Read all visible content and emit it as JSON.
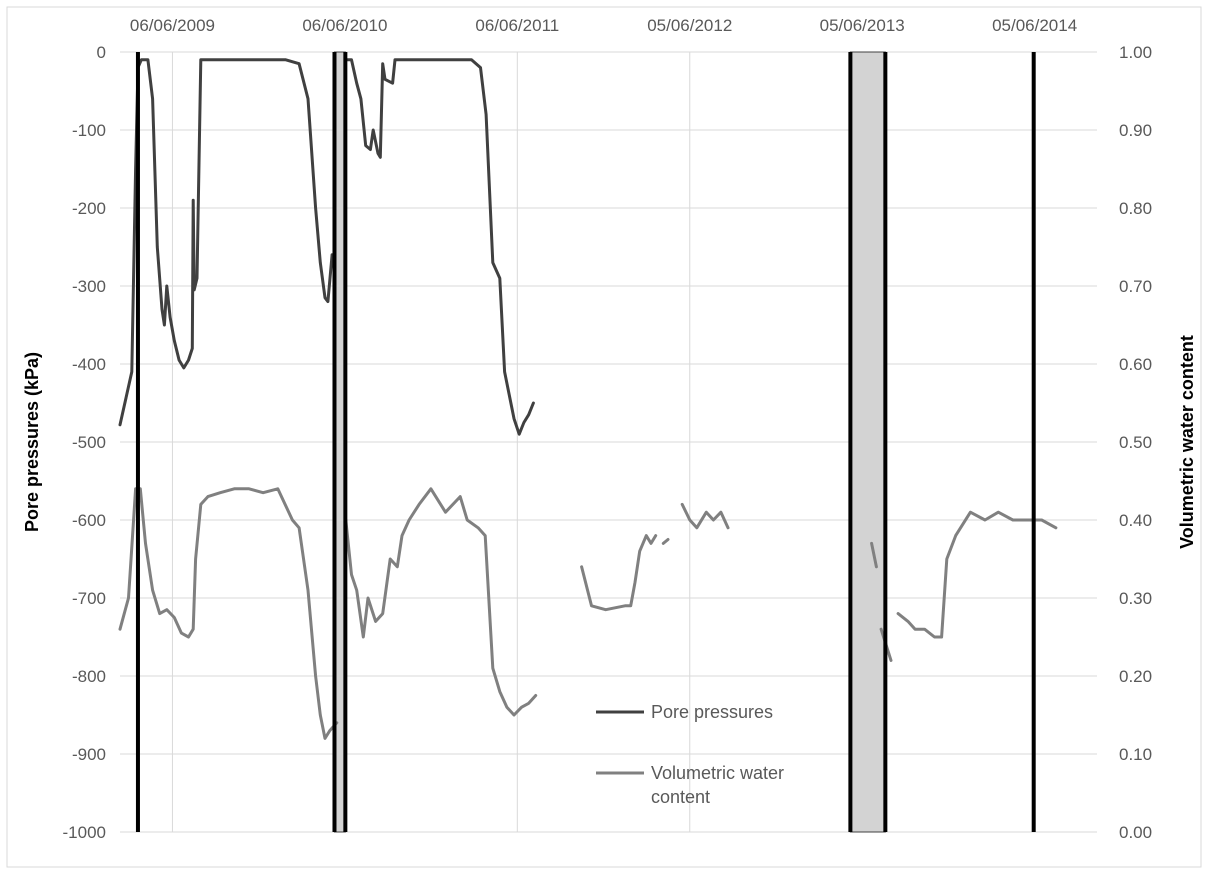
{
  "chart_data": {
    "type": "line",
    "title": "",
    "x_axis": {
      "position": "top",
      "tick_labels": [
        "06/06/2009",
        "06/06/2010",
        "06/06/2011",
        "05/06/2012",
        "05/06/2013",
        "05/06/2014"
      ],
      "range": [
        "2009-02-15",
        "2014-10-15"
      ]
    },
    "y_left": {
      "label": "Pore pressures (kPa)",
      "range": [
        -1000,
        0
      ],
      "ticks": [
        0,
        -100,
        -200,
        -300,
        -400,
        -500,
        -600,
        -700,
        -800,
        -900,
        -1000
      ]
    },
    "y_right": {
      "label": "Volumetric water content",
      "range": [
        0,
        1
      ],
      "ticks": [
        "1.00",
        "0.90",
        "0.80",
        "0.70",
        "0.60",
        "0.50",
        "0.40",
        "0.30",
        "0.20",
        "0.10",
        "0.00"
      ]
    },
    "grid": "horizontal and vertical",
    "legend_position": "bottom-center",
    "series": [
      {
        "name": "Pore pressures",
        "axis": "left",
        "color": "#404040",
        "segments": [
          [
            [
              "2009-02-15",
              -478
            ],
            [
              "2009-03-01",
              -440
            ],
            [
              "2009-03-12",
              -410
            ],
            [
              "2009-03-20",
              -150
            ],
            [
              "2009-03-25",
              -20
            ],
            [
              "2009-04-01",
              -10
            ],
            [
              "2009-04-15",
              -10
            ],
            [
              "2009-04-25",
              -60
            ],
            [
              "2009-05-05",
              -250
            ],
            [
              "2009-05-15",
              -330
            ],
            [
              "2009-05-20",
              -350
            ],
            [
              "2009-05-25",
              -300
            ],
            [
              "2009-06-01",
              -340
            ],
            [
              "2009-06-10",
              -370
            ],
            [
              "2009-06-20",
              -395
            ],
            [
              "2009-06-30",
              -405
            ],
            [
              "2009-07-10",
              -395
            ],
            [
              "2009-07-18",
              -380
            ],
            [
              "2009-07-20",
              -190
            ],
            [
              "2009-07-22",
              -305
            ],
            [
              "2009-07-28",
              -290
            ],
            [
              "2009-08-05",
              -10
            ],
            [
              "2009-08-20",
              -10
            ],
            [
              "2009-10-01",
              -10
            ],
            [
              "2009-12-01",
              -10
            ],
            [
              "2010-02-01",
              -10
            ],
            [
              "2010-03-01",
              -15
            ],
            [
              "2010-03-20",
              -60
            ],
            [
              "2010-04-05",
              -200
            ],
            [
              "2010-04-15",
              -270
            ],
            [
              "2010-04-25",
              -315
            ],
            [
              "2010-05-01",
              -320
            ],
            [
              "2010-05-10",
              -260
            ]
          ],
          [
            [
              "2010-06-08",
              -10
            ],
            [
              "2010-06-20",
              -10
            ],
            [
              "2010-07-01",
              -40
            ],
            [
              "2010-07-10",
              -60
            ],
            [
              "2010-07-20",
              -120
            ],
            [
              "2010-07-30",
              -125
            ],
            [
              "2010-08-05",
              -100
            ],
            [
              "2010-08-15",
              -130
            ],
            [
              "2010-08-20",
              -135
            ],
            [
              "2010-08-25",
              -15
            ],
            [
              "2010-08-30",
              -35
            ],
            [
              "2010-09-15",
              -40
            ],
            [
              "2010-09-20",
              -10
            ],
            [
              "2010-11-01",
              -10
            ],
            [
              "2011-01-01",
              -10
            ],
            [
              "2011-03-01",
              -10
            ],
            [
              "2011-03-20",
              -20
            ],
            [
              "2011-04-01",
              -80
            ],
            [
              "2011-04-15",
              -270
            ],
            [
              "2011-04-30",
              -290
            ],
            [
              "2011-05-10",
              -410
            ],
            [
              "2011-05-20",
              -440
            ],
            [
              "2011-05-30",
              -470
            ],
            [
              "2011-06-10",
              -490
            ],
            [
              "2011-06-20",
              -475
            ],
            [
              "2011-06-30",
              -465
            ],
            [
              "2011-07-10",
              -450
            ]
          ]
        ]
      },
      {
        "name": "Volumetric water content",
        "axis": "right",
        "color": "#808080",
        "segments": [
          [
            [
              "2009-02-15",
              0.26
            ],
            [
              "2009-03-05",
              0.3
            ],
            [
              "2009-03-20",
              0.44
            ],
            [
              "2009-03-30",
              0.44
            ],
            [
              "2009-04-10",
              0.37
            ],
            [
              "2009-04-25",
              0.31
            ],
            [
              "2009-05-10",
              0.28
            ],
            [
              "2009-05-25",
              0.285
            ],
            [
              "2009-06-10",
              0.275
            ],
            [
              "2009-06-25",
              0.255
            ],
            [
              "2009-07-10",
              0.25
            ],
            [
              "2009-07-20",
              0.26
            ],
            [
              "2009-07-25",
              0.35
            ],
            [
              "2009-08-05",
              0.42
            ],
            [
              "2009-08-20",
              0.43
            ],
            [
              "2009-09-15",
              0.435
            ],
            [
              "2009-10-15",
              0.44
            ],
            [
              "2009-11-15",
              0.44
            ],
            [
              "2009-12-15",
              0.435
            ],
            [
              "2010-01-15",
              0.44
            ],
            [
              "2010-02-15",
              0.4
            ],
            [
              "2010-03-01",
              0.39
            ],
            [
              "2010-03-20",
              0.31
            ],
            [
              "2010-04-05",
              0.2
            ],
            [
              "2010-04-15",
              0.15
            ],
            [
              "2010-04-25",
              0.12
            ],
            [
              "2010-05-05",
              0.13
            ],
            [
              "2010-05-20",
              0.14
            ]
          ],
          [
            [
              "2010-06-08",
              0.4
            ],
            [
              "2010-06-20",
              0.33
            ],
            [
              "2010-07-01",
              0.31
            ],
            [
              "2010-07-15",
              0.25
            ],
            [
              "2010-07-25",
              0.3
            ],
            [
              "2010-08-10",
              0.27
            ],
            [
              "2010-08-25",
              0.28
            ],
            [
              "2010-09-10",
              0.35
            ],
            [
              "2010-09-25",
              0.34
            ],
            [
              "2010-10-05",
              0.38
            ],
            [
              "2010-10-20",
              0.4
            ],
            [
              "2010-11-10",
              0.42
            ],
            [
              "2010-12-05",
              0.44
            ],
            [
              "2011-01-05",
              0.41
            ],
            [
              "2011-02-05",
              0.43
            ],
            [
              "2011-02-20",
              0.4
            ],
            [
              "2011-03-15",
              0.39
            ],
            [
              "2011-03-30",
              0.38
            ],
            [
              "2011-04-15",
              0.21
            ],
            [
              "2011-04-30",
              0.18
            ],
            [
              "2011-05-15",
              0.16
            ],
            [
              "2011-05-30",
              0.15
            ],
            [
              "2011-06-15",
              0.16
            ],
            [
              "2011-06-30",
              0.165
            ],
            [
              "2011-07-15",
              0.175
            ]
          ],
          [
            [
              "2011-10-20",
              0.34
            ],
            [
              "2011-11-10",
              0.29
            ],
            [
              "2011-12-10",
              0.285
            ],
            [
              "2012-01-20",
              0.29
            ],
            [
              "2012-02-01",
              0.29
            ],
            [
              "2012-02-10",
              0.32
            ],
            [
              "2012-02-20",
              0.36
            ],
            [
              "2012-03-05",
              0.38
            ],
            [
              "2012-03-15",
              0.37
            ],
            [
              "2012-03-25",
              0.38
            ]
          ],
          [
            [
              "2012-04-10",
              0.37
            ],
            [
              "2012-04-20",
              0.375
            ]
          ],
          [
            [
              "2012-05-20",
              0.42
            ],
            [
              "2012-06-05",
              0.4
            ],
            [
              "2012-06-20",
              0.39
            ],
            [
              "2012-07-10",
              0.41
            ],
            [
              "2012-07-25",
              0.4
            ],
            [
              "2012-08-10",
              0.41
            ],
            [
              "2012-08-25",
              0.39
            ]
          ],
          [
            [
              "2013-06-25",
              0.37
            ],
            [
              "2013-07-05",
              0.34
            ]
          ],
          [
            [
              "2013-07-15",
              0.26
            ],
            [
              "2013-08-05",
              0.22
            ]
          ],
          [
            [
              "2013-08-20",
              0.28
            ],
            [
              "2013-09-10",
              0.27
            ],
            [
              "2013-09-25",
              0.26
            ],
            [
              "2013-10-15",
              0.26
            ],
            [
              "2013-11-05",
              0.25
            ],
            [
              "2013-11-20",
              0.25
            ],
            [
              "2013-12-01",
              0.35
            ],
            [
              "2013-12-20",
              0.38
            ],
            [
              "2014-01-20",
              0.41
            ],
            [
              "2014-02-20",
              0.4
            ],
            [
              "2014-03-20",
              0.41
            ],
            [
              "2014-04-20",
              0.4
            ],
            [
              "2014-05-20",
              0.4
            ],
            [
              "2014-06-20",
              0.4
            ],
            [
              "2014-07-20",
              0.39
            ]
          ]
        ]
      }
    ],
    "annotations": {
      "vertical_lines": [
        "2009-03-25",
        "2010-05-15",
        "2010-06-07",
        "2013-05-11",
        "2013-07-24",
        "2014-06-03"
      ],
      "shaded_periods": [
        [
          "2010-05-15",
          "2010-06-07"
        ],
        [
          "2013-05-11",
          "2013-07-24"
        ]
      ]
    }
  }
}
